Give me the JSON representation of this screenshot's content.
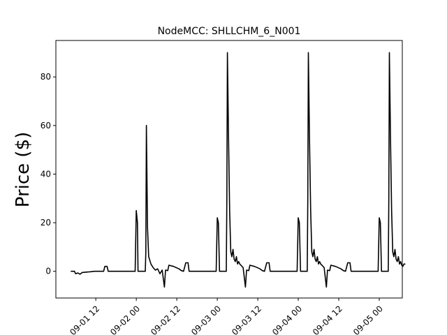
{
  "chart_data": {
    "type": "line",
    "title": "NodeMCC: SHLLCHM_6_N001",
    "xlabel": "",
    "ylabel": "Price ($)",
    "x_axis": "datetime",
    "xlim": [
      "2021-09-01 00:10",
      "2021-09-05 06:50"
    ],
    "ylim": [
      -11,
      95
    ],
    "grid": false,
    "line_color": "#000000",
    "x_ticks": [
      {
        "at": "2021-09-01 12:00",
        "label": "09-01 12"
      },
      {
        "at": "2021-09-02 00:00",
        "label": "09-02 00"
      },
      {
        "at": "2021-09-02 12:00",
        "label": "09-02 12"
      },
      {
        "at": "2021-09-03 00:00",
        "label": "09-03 00"
      },
      {
        "at": "2021-09-03 12:00",
        "label": "09-03 12"
      },
      {
        "at": "2021-09-04 00:00",
        "label": "09-04 00"
      },
      {
        "at": "2021-09-04 12:00",
        "label": "09-04 12"
      },
      {
        "at": "2021-09-05 00:00",
        "label": "09-05 00"
      }
    ],
    "y_ticks": [
      {
        "value": 0,
        "label": "0"
      },
      {
        "value": 20,
        "label": "20"
      },
      {
        "value": 40,
        "label": "40"
      },
      {
        "value": 60,
        "label": "60"
      },
      {
        "value": 80,
        "label": "80"
      }
    ],
    "series": [
      {
        "color": "#000000",
        "points": [
          [
            "2021-09-01 04:40",
            0
          ],
          [
            "2021-09-01 05:40",
            0
          ],
          [
            "2021-09-01 06:00",
            -1.0
          ],
          [
            "2021-09-01 06:40",
            -0.7
          ],
          [
            "2021-09-01 07:20",
            -1.2
          ],
          [
            "2021-09-01 08:00",
            -0.5
          ],
          [
            "2021-09-01 09:20",
            -0.3
          ],
          [
            "2021-09-01 10:20",
            -0.2
          ],
          [
            "2021-09-01 11:40",
            0
          ],
          [
            "2021-09-01 13:00",
            0
          ],
          [
            "2021-09-01 14:20",
            0
          ],
          [
            "2021-09-01 14:40",
            2.0
          ],
          [
            "2021-09-01 15:20",
            2.0
          ],
          [
            "2021-09-01 15:40",
            0
          ],
          [
            "2021-09-01 23:40",
            0
          ],
          [
            "2021-09-02 00:00",
            25
          ],
          [
            "2021-09-02 00:20",
            20
          ],
          [
            "2021-09-02 00:30",
            0
          ],
          [
            "2021-09-02 02:40",
            0
          ],
          [
            "2021-09-02 02:50",
            8
          ],
          [
            "2021-09-02 03:00",
            60
          ],
          [
            "2021-09-02 03:20",
            18
          ],
          [
            "2021-09-02 03:40",
            6
          ],
          [
            "2021-09-02 04:20",
            3
          ],
          [
            "2021-09-02 05:00",
            1.5
          ],
          [
            "2021-09-02 05:40",
            0.5
          ],
          [
            "2021-09-02 06:20",
            1.0
          ],
          [
            "2021-09-02 07:00",
            -1.0
          ],
          [
            "2021-09-02 07:40",
            0.5
          ],
          [
            "2021-09-02 08:20",
            -6.5
          ],
          [
            "2021-09-02 08:40",
            0.5
          ],
          [
            "2021-09-02 09:20",
            0.3
          ],
          [
            "2021-09-02 09:40",
            2.5
          ],
          [
            "2021-09-02 11:00",
            2.0
          ],
          [
            "2021-09-02 12:40",
            1.0
          ],
          [
            "2021-09-02 13:20",
            0.3
          ],
          [
            "2021-09-02 14:00",
            0
          ],
          [
            "2021-09-02 14:40",
            3.5
          ],
          [
            "2021-09-02 15:20",
            3.5
          ],
          [
            "2021-09-02 15:40",
            0
          ],
          [
            "2021-09-02 23:40",
            0
          ],
          [
            "2021-09-03 00:00",
            22
          ],
          [
            "2021-09-03 00:20",
            20
          ],
          [
            "2021-09-03 00:40",
            0
          ],
          [
            "2021-09-03 02:40",
            0
          ],
          [
            "2021-09-03 02:50",
            30
          ],
          [
            "2021-09-03 03:00",
            90
          ],
          [
            "2021-09-03 03:20",
            55
          ],
          [
            "2021-09-03 03:40",
            25
          ],
          [
            "2021-09-03 04:00",
            8
          ],
          [
            "2021-09-03 04:20",
            6
          ],
          [
            "2021-09-03 04:40",
            9
          ],
          [
            "2021-09-03 05:00",
            5
          ],
          [
            "2021-09-03 05:20",
            4
          ],
          [
            "2021-09-03 05:40",
            6
          ],
          [
            "2021-09-03 06:00",
            3
          ],
          [
            "2021-09-03 06:20",
            4
          ],
          [
            "2021-09-03 06:40",
            3
          ],
          [
            "2021-09-03 07:00",
            2.5
          ],
          [
            "2021-09-03 07:40",
            1.5
          ],
          [
            "2021-09-03 08:20",
            -6.5
          ],
          [
            "2021-09-03 08:40",
            0.5
          ],
          [
            "2021-09-03 09:20",
            0.3
          ],
          [
            "2021-09-03 09:40",
            2.5
          ],
          [
            "2021-09-03 11:00",
            2.0
          ],
          [
            "2021-09-03 12:40",
            1.0
          ],
          [
            "2021-09-03 13:20",
            0.3
          ],
          [
            "2021-09-03 14:00",
            0
          ],
          [
            "2021-09-03 14:40",
            3.5
          ],
          [
            "2021-09-03 15:20",
            3.5
          ],
          [
            "2021-09-03 15:40",
            0
          ],
          [
            "2021-09-03 23:40",
            0
          ],
          [
            "2021-09-04 00:00",
            22
          ],
          [
            "2021-09-04 00:20",
            20
          ],
          [
            "2021-09-04 00:40",
            0
          ],
          [
            "2021-09-04 02:40",
            0
          ],
          [
            "2021-09-04 02:50",
            30
          ],
          [
            "2021-09-04 03:00",
            90
          ],
          [
            "2021-09-04 03:20",
            55
          ],
          [
            "2021-09-04 03:40",
            25
          ],
          [
            "2021-09-04 04:00",
            8
          ],
          [
            "2021-09-04 04:20",
            6
          ],
          [
            "2021-09-04 04:40",
            9
          ],
          [
            "2021-09-04 05:00",
            5
          ],
          [
            "2021-09-04 05:20",
            4
          ],
          [
            "2021-09-04 05:40",
            6
          ],
          [
            "2021-09-04 06:00",
            3
          ],
          [
            "2021-09-04 06:20",
            4
          ],
          [
            "2021-09-04 06:40",
            3
          ],
          [
            "2021-09-04 07:00",
            2.5
          ],
          [
            "2021-09-04 07:40",
            1.5
          ],
          [
            "2021-09-04 08:20",
            -6.5
          ],
          [
            "2021-09-04 08:40",
            0.5
          ],
          [
            "2021-09-04 09:20",
            0.3
          ],
          [
            "2021-09-04 09:40",
            2.5
          ],
          [
            "2021-09-04 11:00",
            2.0
          ],
          [
            "2021-09-04 12:40",
            1.0
          ],
          [
            "2021-09-04 13:20",
            0.3
          ],
          [
            "2021-09-04 14:00",
            0
          ],
          [
            "2021-09-04 14:40",
            3.5
          ],
          [
            "2021-09-04 15:20",
            3.5
          ],
          [
            "2021-09-04 15:40",
            0
          ],
          [
            "2021-09-04 23:40",
            0
          ],
          [
            "2021-09-05 00:00",
            22
          ],
          [
            "2021-09-05 00:20",
            20
          ],
          [
            "2021-09-05 00:40",
            0
          ],
          [
            "2021-09-05 02:40",
            0
          ],
          [
            "2021-09-05 02:50",
            30
          ],
          [
            "2021-09-05 03:00",
            90
          ],
          [
            "2021-09-05 03:20",
            55
          ],
          [
            "2021-09-05 03:40",
            25
          ],
          [
            "2021-09-05 04:00",
            8
          ],
          [
            "2021-09-05 04:20",
            6
          ],
          [
            "2021-09-05 04:40",
            9
          ],
          [
            "2021-09-05 05:00",
            5
          ],
          [
            "2021-09-05 05:20",
            4
          ],
          [
            "2021-09-05 05:40",
            6
          ],
          [
            "2021-09-05 06:00",
            3
          ],
          [
            "2021-09-05 06:20",
            4
          ],
          [
            "2021-09-05 06:40",
            2.5
          ],
          [
            "2021-09-05 07:00",
            2
          ],
          [
            "2021-09-05 07:20",
            3
          ],
          [
            "2021-09-05 07:40",
            3
          ]
        ]
      }
    ]
  }
}
